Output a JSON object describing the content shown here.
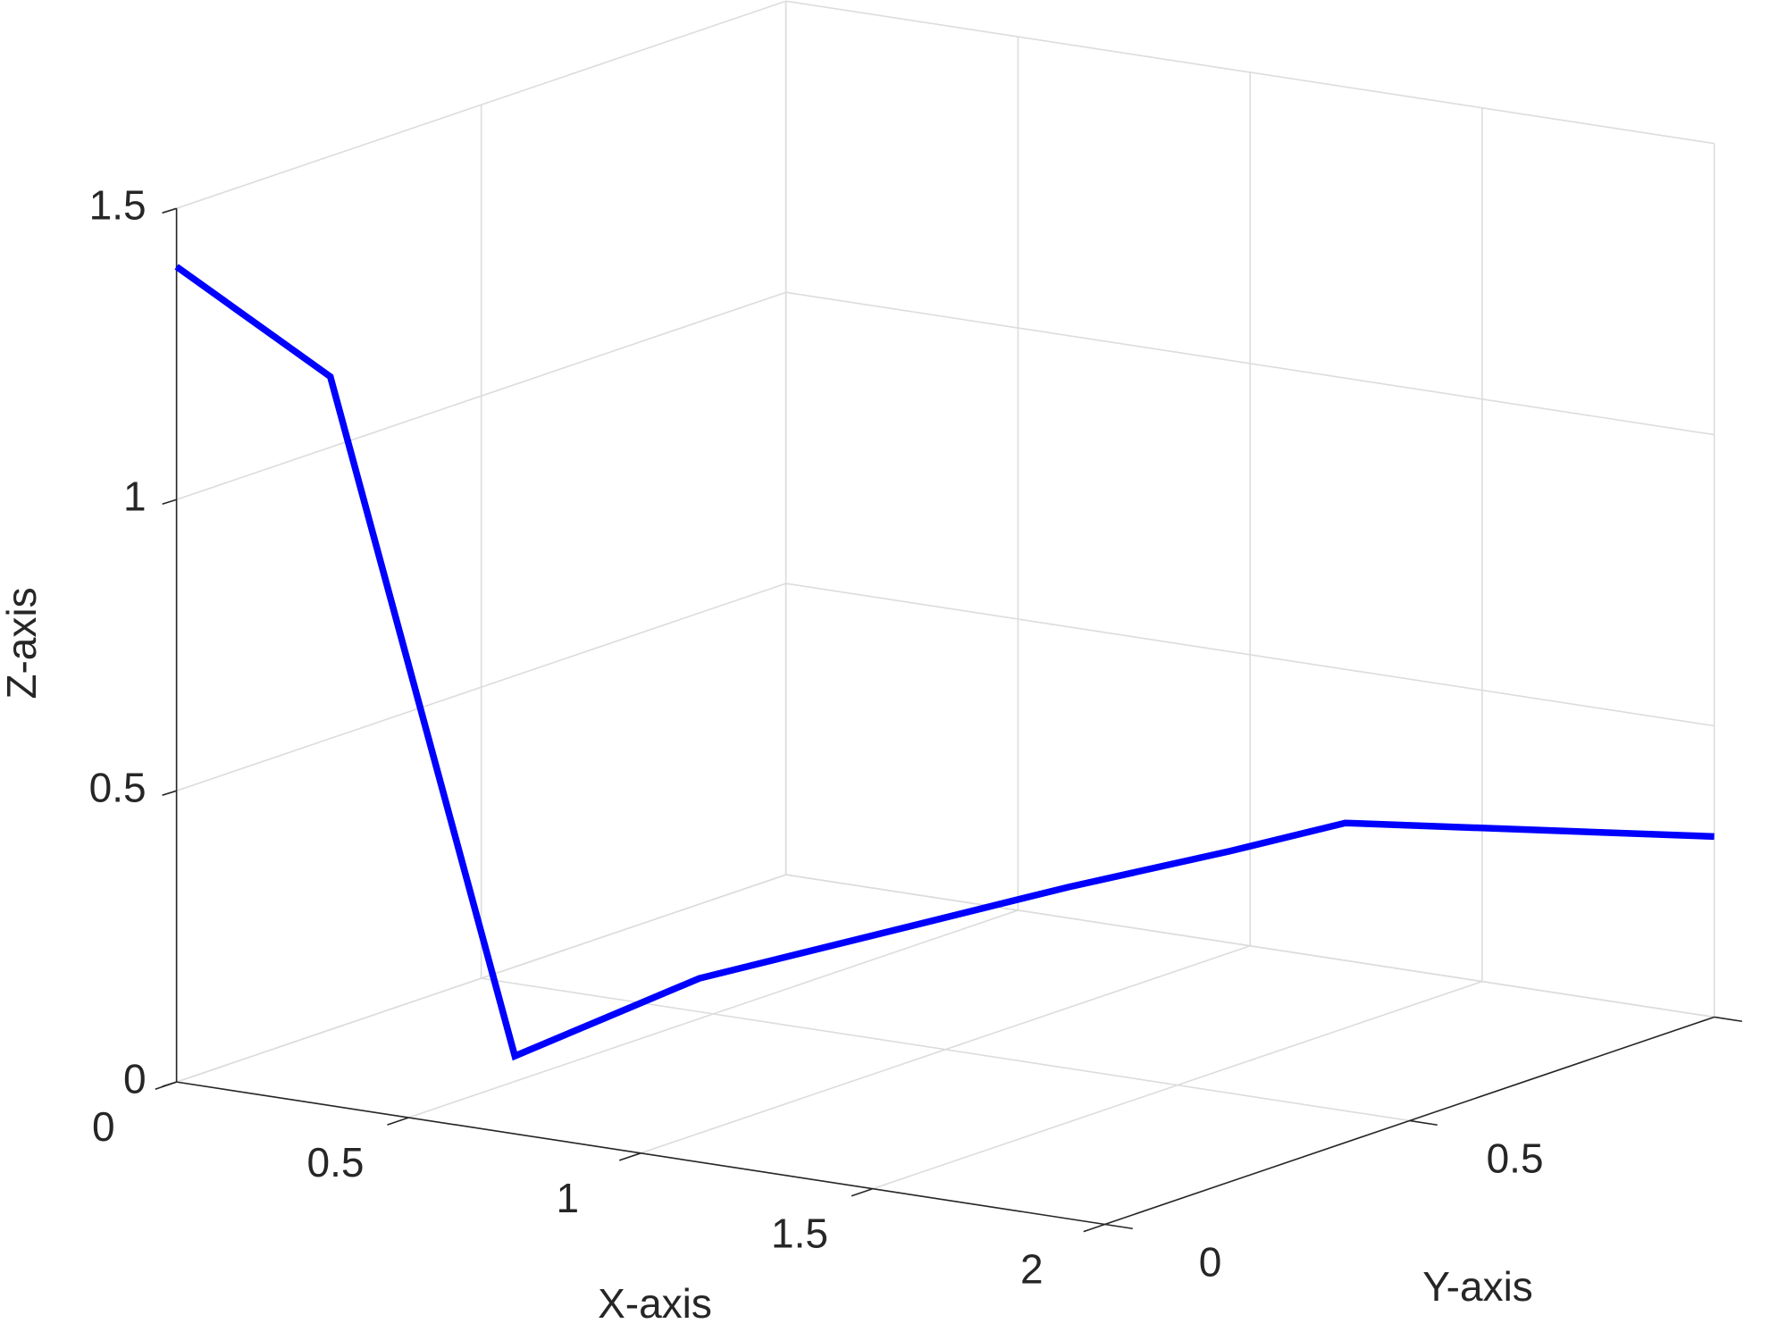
{
  "chart_data": {
    "type": "line3d",
    "xlabel": "X-axis",
    "ylabel": "Y-axis",
    "zlabel": "Z-axis",
    "series": [
      {
        "color": "#0000ff",
        "x": [
          0,
          0.2,
          0.44,
          0.68,
          1.16,
          1.37,
          1.52,
          2
        ],
        "y": [
          0,
          0.1,
          0.22,
          0.34,
          0.58,
          0.685,
          0.76,
          1
        ],
        "z": [
          1.4,
          1.2,
          0.02,
          0.14,
          0.27,
          0.32,
          0.36,
          0.31
        ]
      }
    ],
    "xlim": [
      0,
      2
    ],
    "ylim": [
      0,
      1
    ],
    "zlim": [
      0,
      1.5
    ],
    "xticks": [
      0,
      0.5,
      1,
      1.5,
      2
    ],
    "yticks": [
      0,
      0.5,
      1
    ],
    "zticks": [
      0,
      0.5,
      1,
      1.5
    ],
    "grid": true
  }
}
